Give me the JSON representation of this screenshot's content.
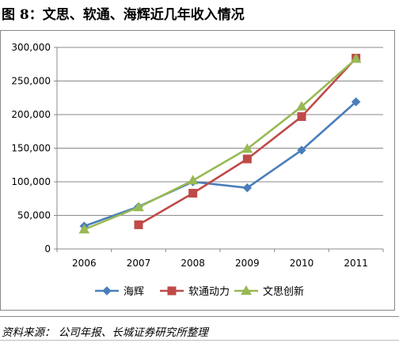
{
  "figure_title": "图 8：文思、软通、海辉近几年收入情况",
  "source_note": "资料来源：  公司年报、长城证券研究所整理",
  "chart_data": {
    "type": "line",
    "title": "",
    "xlabel": "",
    "ylabel": "",
    "categories": [
      "2006",
      "2007",
      "2008",
      "2009",
      "2010",
      "2011"
    ],
    "y_tick_labels": [
      "0",
      "50,000",
      "100,000",
      "150,000",
      "200,000",
      "250,000",
      "300,000"
    ],
    "ylim": [
      0,
      300000
    ],
    "grid": "horizontal",
    "legend_position": "bottom",
    "series": [
      {
        "name": "海辉",
        "color": "#4a7ebb",
        "marker": "diamond",
        "values": [
          34000,
          63000,
          100000,
          91000,
          147000,
          219000
        ]
      },
      {
        "name": "软通动力",
        "color": "#be4b48",
        "marker": "square",
        "values": [
          null,
          36000,
          83000,
          134000,
          197000,
          284000
        ]
      },
      {
        "name": "文思创新",
        "color": "#98b954",
        "marker": "triangle",
        "values": [
          29000,
          62000,
          102000,
          149000,
          212000,
          283000
        ]
      }
    ]
  }
}
